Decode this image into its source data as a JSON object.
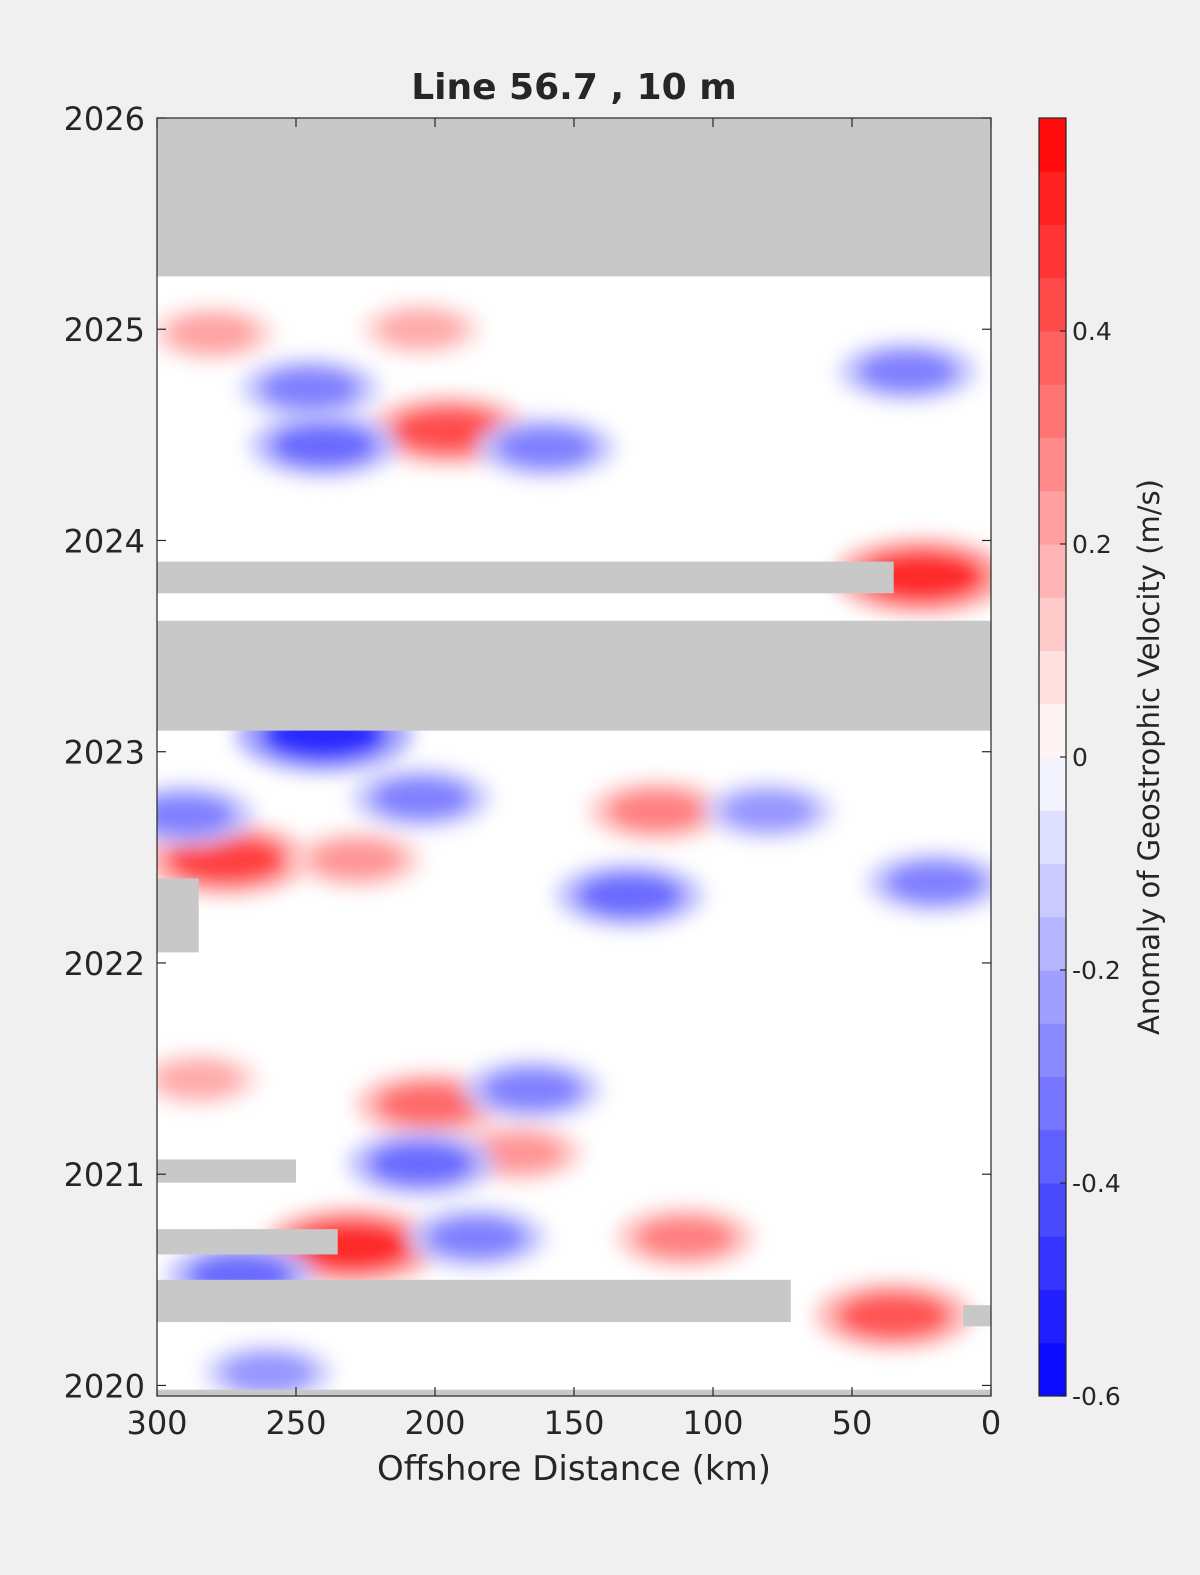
{
  "chart_data": {
    "type": "heatmap",
    "title": "Line 56.7 , 10 m",
    "xlabel": "Offshore Distance (km)",
    "ylabel": "",
    "x_reversed": true,
    "xlim": [
      0,
      300
    ],
    "ylim": [
      2019.95,
      2026
    ],
    "x_ticks": [
      300,
      250,
      200,
      150,
      100,
      50,
      0
    ],
    "y_ticks": [
      2020,
      2021,
      2022,
      2023,
      2024,
      2025,
      2026
    ],
    "grid": false,
    "colorbar": {
      "label": "Anomaly of Geostrophic Velocity (m/s)",
      "clim": [
        -0.6,
        0.6
      ],
      "ticks": [
        -0.6,
        -0.4,
        -0.2,
        0,
        0.2,
        0.4
      ],
      "levels": 24,
      "colormap": "blue-white-red",
      "low_color": "#0000ff",
      "mid_color": "#ffffff",
      "high_color": "#ff0000"
    },
    "missing_color": "#c8c8c8",
    "missing_data": [
      {
        "t0": 2025.25,
        "t1": 2026.0,
        "x0": 0,
        "x1": 300
      },
      {
        "t0": 2023.75,
        "t1": 2023.9,
        "x0": 35,
        "x1": 300
      },
      {
        "t0": 2023.1,
        "t1": 2023.62,
        "x0": 0,
        "x1": 300
      },
      {
        "t0": 2022.05,
        "t1": 2022.4,
        "x0": 285,
        "x1": 300
      },
      {
        "t0": 2020.96,
        "t1": 2021.07,
        "x0": 250,
        "x1": 300
      },
      {
        "t0": 2020.62,
        "t1": 2020.74,
        "x0": 235,
        "x1": 300
      },
      {
        "t0": 2020.3,
        "t1": 2020.5,
        "x0": 72,
        "x1": 300
      },
      {
        "t0": 2020.28,
        "t1": 2020.38,
        "x0": 0,
        "x1": 10
      },
      {
        "t0": 2019.95,
        "t1": 2019.98,
        "x0": 0,
        "x1": 300
      }
    ],
    "anomaly_features": [
      {
        "x": 195,
        "t": 2024.52,
        "value": 0.42
      },
      {
        "x": 25,
        "t": 2023.83,
        "value": 0.5
      },
      {
        "x": 275,
        "t": 2022.49,
        "value": 0.45
      },
      {
        "x": 230,
        "t": 2020.66,
        "value": 0.5
      },
      {
        "x": 35,
        "t": 2020.33,
        "value": 0.4
      },
      {
        "x": 202,
        "t": 2021.33,
        "value": 0.35
      },
      {
        "x": 120,
        "t": 2022.72,
        "value": 0.3
      },
      {
        "x": 110,
        "t": 2020.7,
        "value": 0.3
      },
      {
        "x": 280,
        "t": 2024.98,
        "value": 0.22
      },
      {
        "x": 205,
        "t": 2025.0,
        "value": 0.2
      },
      {
        "x": 228,
        "t": 2022.49,
        "value": 0.25
      },
      {
        "x": 170,
        "t": 2021.1,
        "value": 0.25
      },
      {
        "x": 285,
        "t": 2021.45,
        "value": 0.2
      },
      {
        "x": 240,
        "t": 2024.45,
        "value": -0.35
      },
      {
        "x": 160,
        "t": 2024.44,
        "value": -0.3
      },
      {
        "x": 245,
        "t": 2024.72,
        "value": -0.3
      },
      {
        "x": 30,
        "t": 2024.8,
        "value": -0.3
      },
      {
        "x": 240,
        "t": 2023.08,
        "value": -0.5
      },
      {
        "x": 205,
        "t": 2022.78,
        "value": -0.3
      },
      {
        "x": 130,
        "t": 2022.32,
        "value": -0.35
      },
      {
        "x": 20,
        "t": 2022.38,
        "value": -0.3
      },
      {
        "x": 205,
        "t": 2021.05,
        "value": -0.35
      },
      {
        "x": 165,
        "t": 2021.4,
        "value": -0.3
      },
      {
        "x": 185,
        "t": 2020.7,
        "value": -0.3
      },
      {
        "x": 270,
        "t": 2020.52,
        "value": -0.35
      },
      {
        "x": 290,
        "t": 2022.7,
        "value": -0.3
      },
      {
        "x": 80,
        "t": 2022.72,
        "value": -0.25
      },
      {
        "x": 260,
        "t": 2020.06,
        "value": -0.25
      }
    ]
  }
}
